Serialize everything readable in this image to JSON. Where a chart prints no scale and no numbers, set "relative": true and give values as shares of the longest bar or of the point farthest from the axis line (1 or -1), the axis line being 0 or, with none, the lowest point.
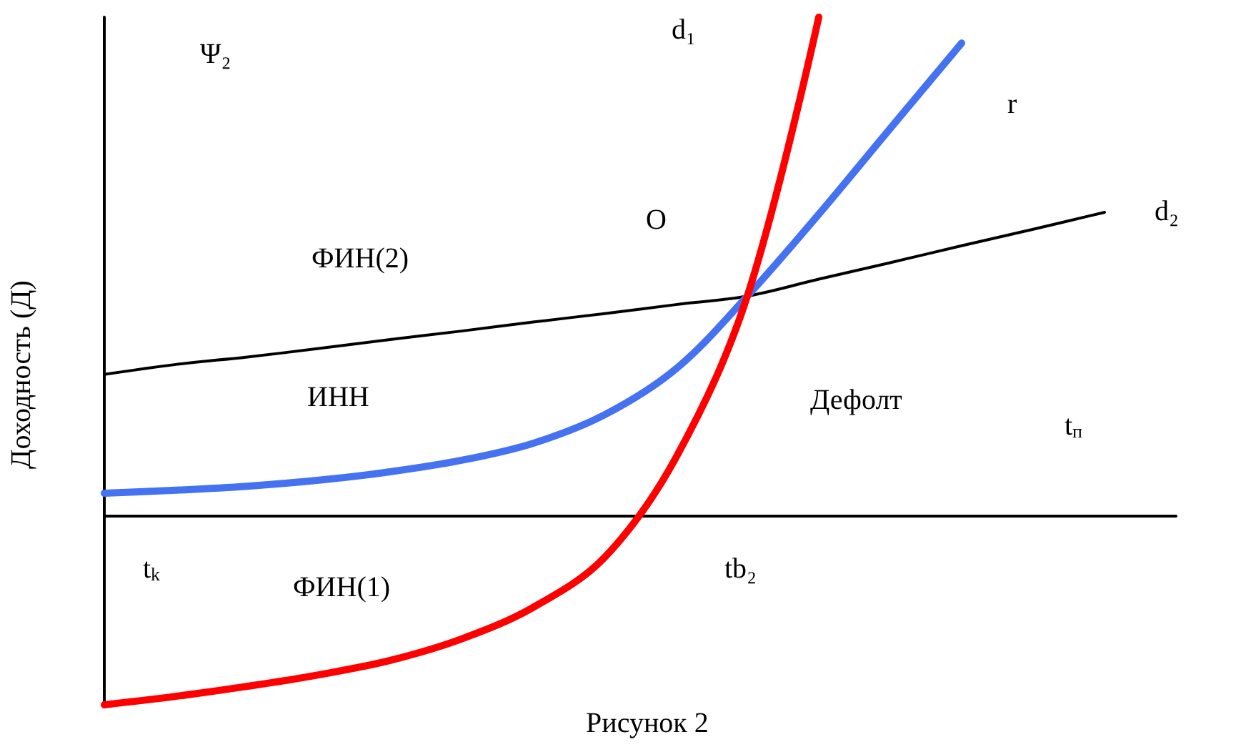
{
  "chart_data": {
    "type": "line",
    "relative": true,
    "ylabel": "Доходность (Д)",
    "categories": [
      null,
      null,
      null,
      null,
      null,
      null,
      null,
      null,
      null,
      null,
      null,
      null,
      null,
      null,
      null,
      null
    ],
    "series": [
      {
        "color": "#000000",
        "values": [
          0.284,
          0.304,
          0.319,
          0.336,
          0.354,
          0.371,
          0.389,
          0.406,
          0.424,
          0.441,
          0.475,
          0.508,
          0.542,
          0.575,
          0.609,
          null
        ]
      },
      {
        "color": "#4472f0",
        "values": [
          0.046,
          0.052,
          0.06,
          0.072,
          0.089,
          0.112,
          0.146,
          0.203,
          0.295,
          0.441,
          0.605,
          0.777,
          0.948,
          null,
          null,
          null
        ]
      },
      {
        "color": "#ff0000",
        "values": [
          -0.378,
          -0.361,
          -0.341,
          -0.318,
          -0.289,
          -0.246,
          -0.183,
          -0.083,
          0.117,
          0.441,
          1,
          null,
          null,
          null,
          null,
          null
        ]
      }
    ],
    "annotations": [
      "Ψ₂",
      "d₁",
      "r",
      "d₂",
      "O",
      "ФИН(2)",
      "ИНН",
      "Дефолт",
      "t$_{п}$",
      "t$_{k}$",
      "ФИН(1)",
      "tb₂",
      "Рисунок 2"
    ],
    "marker": "none",
    "line_style": "solid"
  }
}
